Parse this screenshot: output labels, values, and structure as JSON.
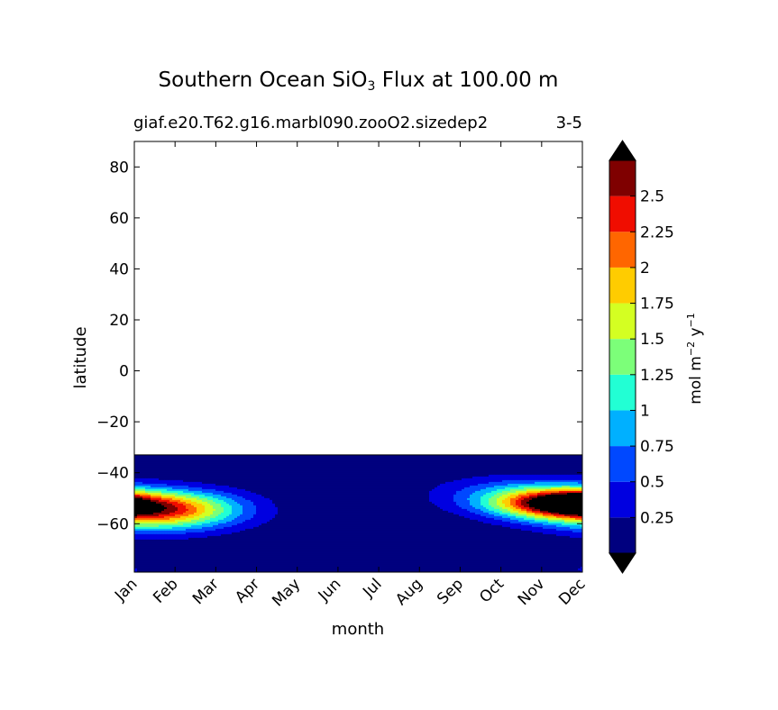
{
  "chart_data": {
    "type": "heatmap",
    "title": "Southern Ocean SiO",
    "title_sub": "3",
    "title_rest": " Flux at 100.00 m",
    "subtitle_left": "giaf.e20.T62.g16.marbl090.zooO2.sizedep2",
    "subtitle_right": "3-5",
    "xlabel": "month",
    "ylabel": "latitude",
    "x_categories": [
      "Jan",
      "Feb",
      "Mar",
      "Apr",
      "May",
      "Jun",
      "Jul",
      "Aug",
      "Sep",
      "Oct",
      "Nov",
      "Dec"
    ],
    "y_ticks": [
      -60,
      -40,
      -20,
      0,
      20,
      40,
      60,
      80
    ],
    "y_tick_labels": [
      "−60",
      "−40",
      "−20",
      "0",
      "20",
      "40",
      "60",
      "80"
    ],
    "ylim": [
      -79,
      90
    ],
    "data_extent_lat": [
      -79,
      -33
    ],
    "colorbar": {
      "label": "mol m",
      "label_sup1": "−2",
      "label_mid": " y",
      "label_sup2": "−1",
      "levels": [
        0,
        0.125,
        0.25,
        0.375,
        0.5,
        0.625,
        0.75,
        0.875,
        1.0,
        1.125,
        1.25,
        1.375,
        1.5,
        1.625,
        1.75,
        1.875,
        2.0,
        2.125,
        2.25,
        2.375,
        2.5,
        2.625,
        2.75
      ],
      "tick_values": [
        0.25,
        0.5,
        0.75,
        1,
        1.25,
        1.5,
        1.75,
        2,
        2.25,
        2.5
      ],
      "tick_labels": [
        "0.25",
        "0.5",
        "0.75",
        "1",
        "1.25",
        "1.5",
        "1.75",
        "2",
        "2.25",
        "2.5"
      ],
      "colors": [
        "#00007f",
        "#0000e0",
        "#0048ff",
        "#00b0ff",
        "#22ffd4",
        "#7cff79",
        "#d4ff22",
        "#ffcc00",
        "#ff6600",
        "#f00d00",
        "#7f0000"
      ],
      "under_color": "#000000",
      "over_color": "#000000"
    },
    "field_blobs": [
      {
        "month": 0.2,
        "lat": -55,
        "sx": 1.5,
        "sy": 5.5,
        "peak": 1.9
      },
      {
        "month": 1.3,
        "lat": -54,
        "sx": 1.0,
        "sy": 4.5,
        "peak": 0.6
      },
      {
        "month": 10.6,
        "lat": -52,
        "sx": 1.2,
        "sy": 4.0,
        "peak": 2.6
      },
      {
        "month": 11.1,
        "lat": -52,
        "sx": 0.6,
        "sy": 2.5,
        "peak": 0.8
      },
      {
        "month": 9.3,
        "lat": -48,
        "sx": 1.4,
        "sy": 5.0,
        "peak": 0.55
      },
      {
        "month": 11.5,
        "lat": -78,
        "sx": 0.6,
        "sy": 2.0,
        "peak": 0.35
      }
    ],
    "grid": false
  }
}
